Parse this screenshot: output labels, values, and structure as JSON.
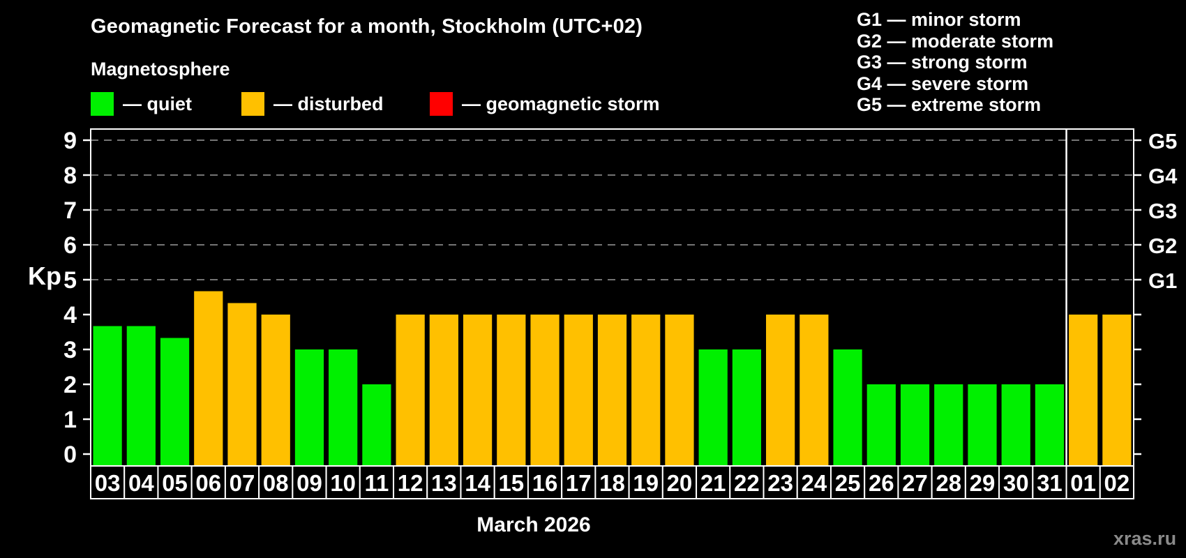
{
  "title": "Geomagnetic Forecast for a month, Stockholm (UTC+02)",
  "subtitle": "Magnetosphere",
  "legend": {
    "items": [
      {
        "name": "quiet",
        "color": "#00f000",
        "label": "— quiet"
      },
      {
        "name": "disturbed",
        "color": "#ffc000",
        "label": "— disturbed"
      },
      {
        "name": "storm",
        "color": "#ff0000",
        "label": "— geomagnetic storm"
      }
    ]
  },
  "g_legend": {
    "items": [
      "G1 — minor storm",
      "G2 — moderate storm",
      "G3 — strong storm",
      "G4 — severe storm",
      "G5 — extreme storm"
    ]
  },
  "footer": {
    "month_label": "March 2026",
    "watermark": "xras.ru"
  },
  "chart_data": {
    "type": "bar",
    "title": "Geomagnetic Forecast for a month, Stockholm (UTC+02)",
    "ylabel": "Kp",
    "xlabel": "March 2026",
    "ylim": [
      0,
      9.3
    ],
    "yticks": [
      0,
      1,
      2,
      3,
      4,
      5,
      6,
      7,
      8,
      9
    ],
    "gridlines_at": [
      5,
      6,
      7,
      8,
      9
    ],
    "grid": "dashed horizontal at storm levels only",
    "legend_position": "top",
    "categories": [
      "03",
      "04",
      "05",
      "06",
      "07",
      "08",
      "09",
      "10",
      "11",
      "12",
      "13",
      "14",
      "15",
      "16",
      "17",
      "18",
      "19",
      "20",
      "21",
      "22",
      "23",
      "24",
      "25",
      "26",
      "27",
      "28",
      "29",
      "30",
      "31",
      "01",
      "02"
    ],
    "values": [
      3.67,
      3.67,
      3.33,
      4.67,
      4.33,
      4,
      3,
      3,
      2,
      4,
      4,
      4,
      4,
      4,
      4,
      4,
      4,
      4,
      3,
      3,
      4,
      4,
      3,
      2,
      2,
      2,
      2,
      2,
      2,
      4,
      4
    ],
    "states": [
      "quiet",
      "quiet",
      "quiet",
      "disturbed",
      "disturbed",
      "disturbed",
      "quiet",
      "quiet",
      "quiet",
      "disturbed",
      "disturbed",
      "disturbed",
      "disturbed",
      "disturbed",
      "disturbed",
      "disturbed",
      "disturbed",
      "disturbed",
      "quiet",
      "quiet",
      "disturbed",
      "disturbed",
      "quiet",
      "quiet",
      "quiet",
      "quiet",
      "quiet",
      "quiet",
      "quiet",
      "disturbed",
      "disturbed"
    ],
    "month_separator_after_index": 28,
    "right_axis_labels": [
      {
        "kp": 5,
        "label": "G1"
      },
      {
        "kp": 6,
        "label": "G2"
      },
      {
        "kp": 7,
        "label": "G3"
      },
      {
        "kp": 8,
        "label": "G4"
      },
      {
        "kp": 9,
        "label": "G5"
      }
    ],
    "colors": {
      "quiet": "#00f000",
      "disturbed": "#ffc000",
      "storm": "#ff0000",
      "grid": "#9a9a9a",
      "axis": "#ffffff",
      "background": "#000000"
    }
  }
}
